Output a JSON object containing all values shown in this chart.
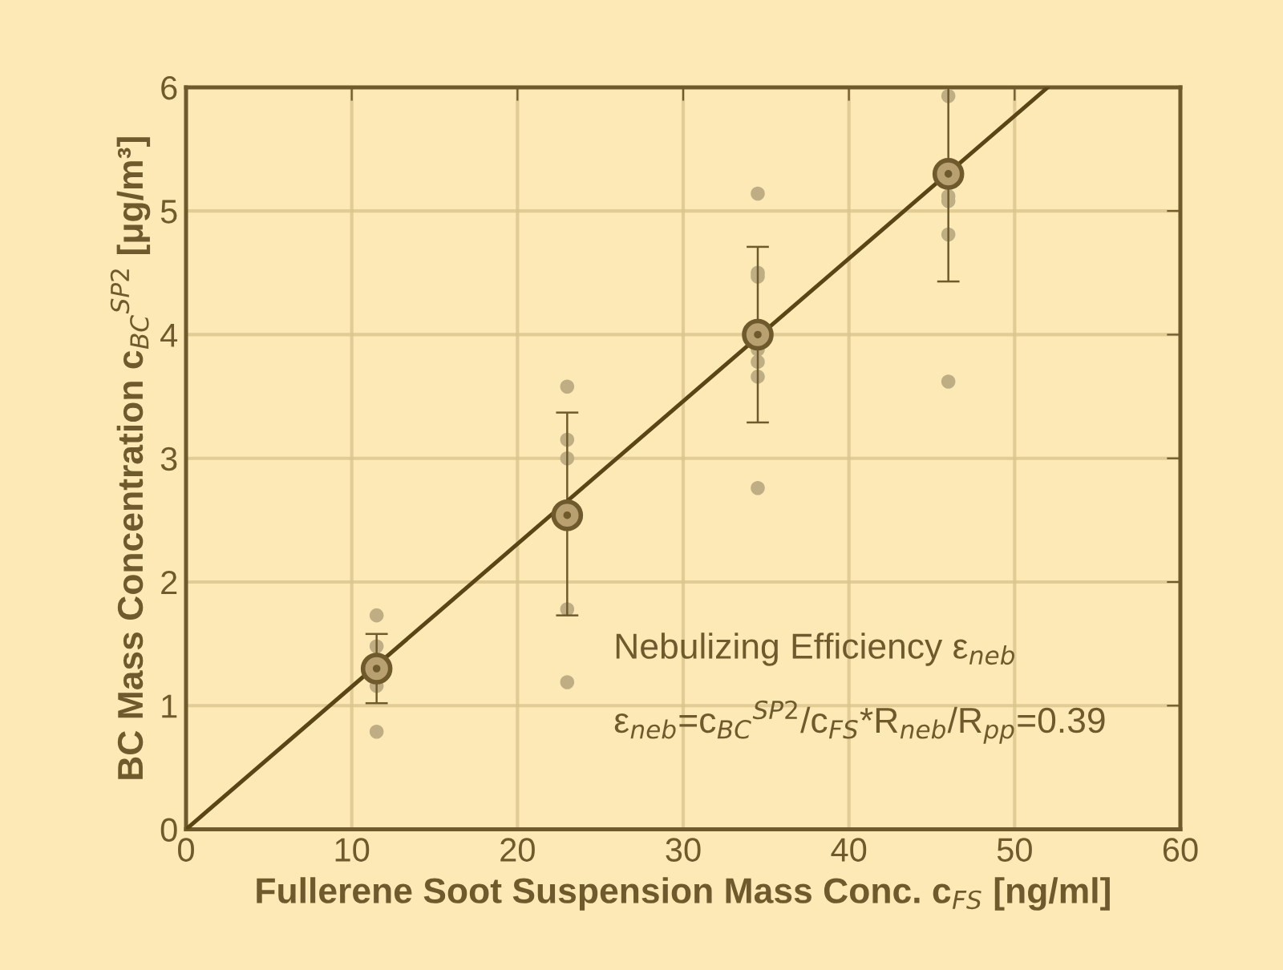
{
  "chart_data": {
    "type": "scatter",
    "xlabel": "Fullerene Soot Suspension Mass Conc. c$_{FS}$ [ng/ml]",
    "ylabel": "BC Mass Concentration c$_{BC}$$^{SP2}$ [μg/m³]",
    "xlim": [
      0,
      60
    ],
    "ylim": [
      0,
      6
    ],
    "xticks": [
      0,
      10,
      20,
      30,
      40,
      50,
      60
    ],
    "yticks": [
      0,
      1,
      2,
      3,
      4,
      5,
      6
    ],
    "grid": true,
    "series": [
      {
        "color": "#bfae84",
        "marker": "circle",
        "x": [
          11.5,
          11.5,
          11.5,
          11.5,
          23,
          23,
          23,
          23,
          23,
          34.5,
          34.5,
          34.5,
          34.5,
          34.5,
          34.5,
          34.5,
          46,
          46,
          46,
          46,
          46
        ],
        "values": [
          1.73,
          1.48,
          1.16,
          0.79,
          3.58,
          3.15,
          3.0,
          1.78,
          1.19,
          5.14,
          4.5,
          4.47,
          3.88,
          3.78,
          3.66,
          2.76,
          5.93,
          5.12,
          5.08,
          4.81,
          3.62
        ]
      },
      {
        "color": "#b8a070",
        "marker": "circle",
        "x": [
          11.5,
          23,
          34.5,
          46
        ],
        "values": [
          1.3,
          2.54,
          4.0,
          5.3
        ],
        "errors": [
          [
            1.02,
            1.58
          ],
          [
            1.73,
            3.37
          ],
          [
            3.29,
            4.71
          ],
          [
            4.43,
            6.0
          ]
        ]
      },
      {
        "type": "line",
        "color": "#5a4516",
        "x": [
          0,
          52
        ],
        "values": [
          0,
          6
        ]
      }
    ],
    "annotations": [
      "Nebulizing Efficiency ε$_{neb}$",
      "ε$_{neb}$=c$_{BC}$$^{SP2}$/c$_{FS}$*R$_{neb}$/R$_{pp}$=0.39"
    ]
  }
}
